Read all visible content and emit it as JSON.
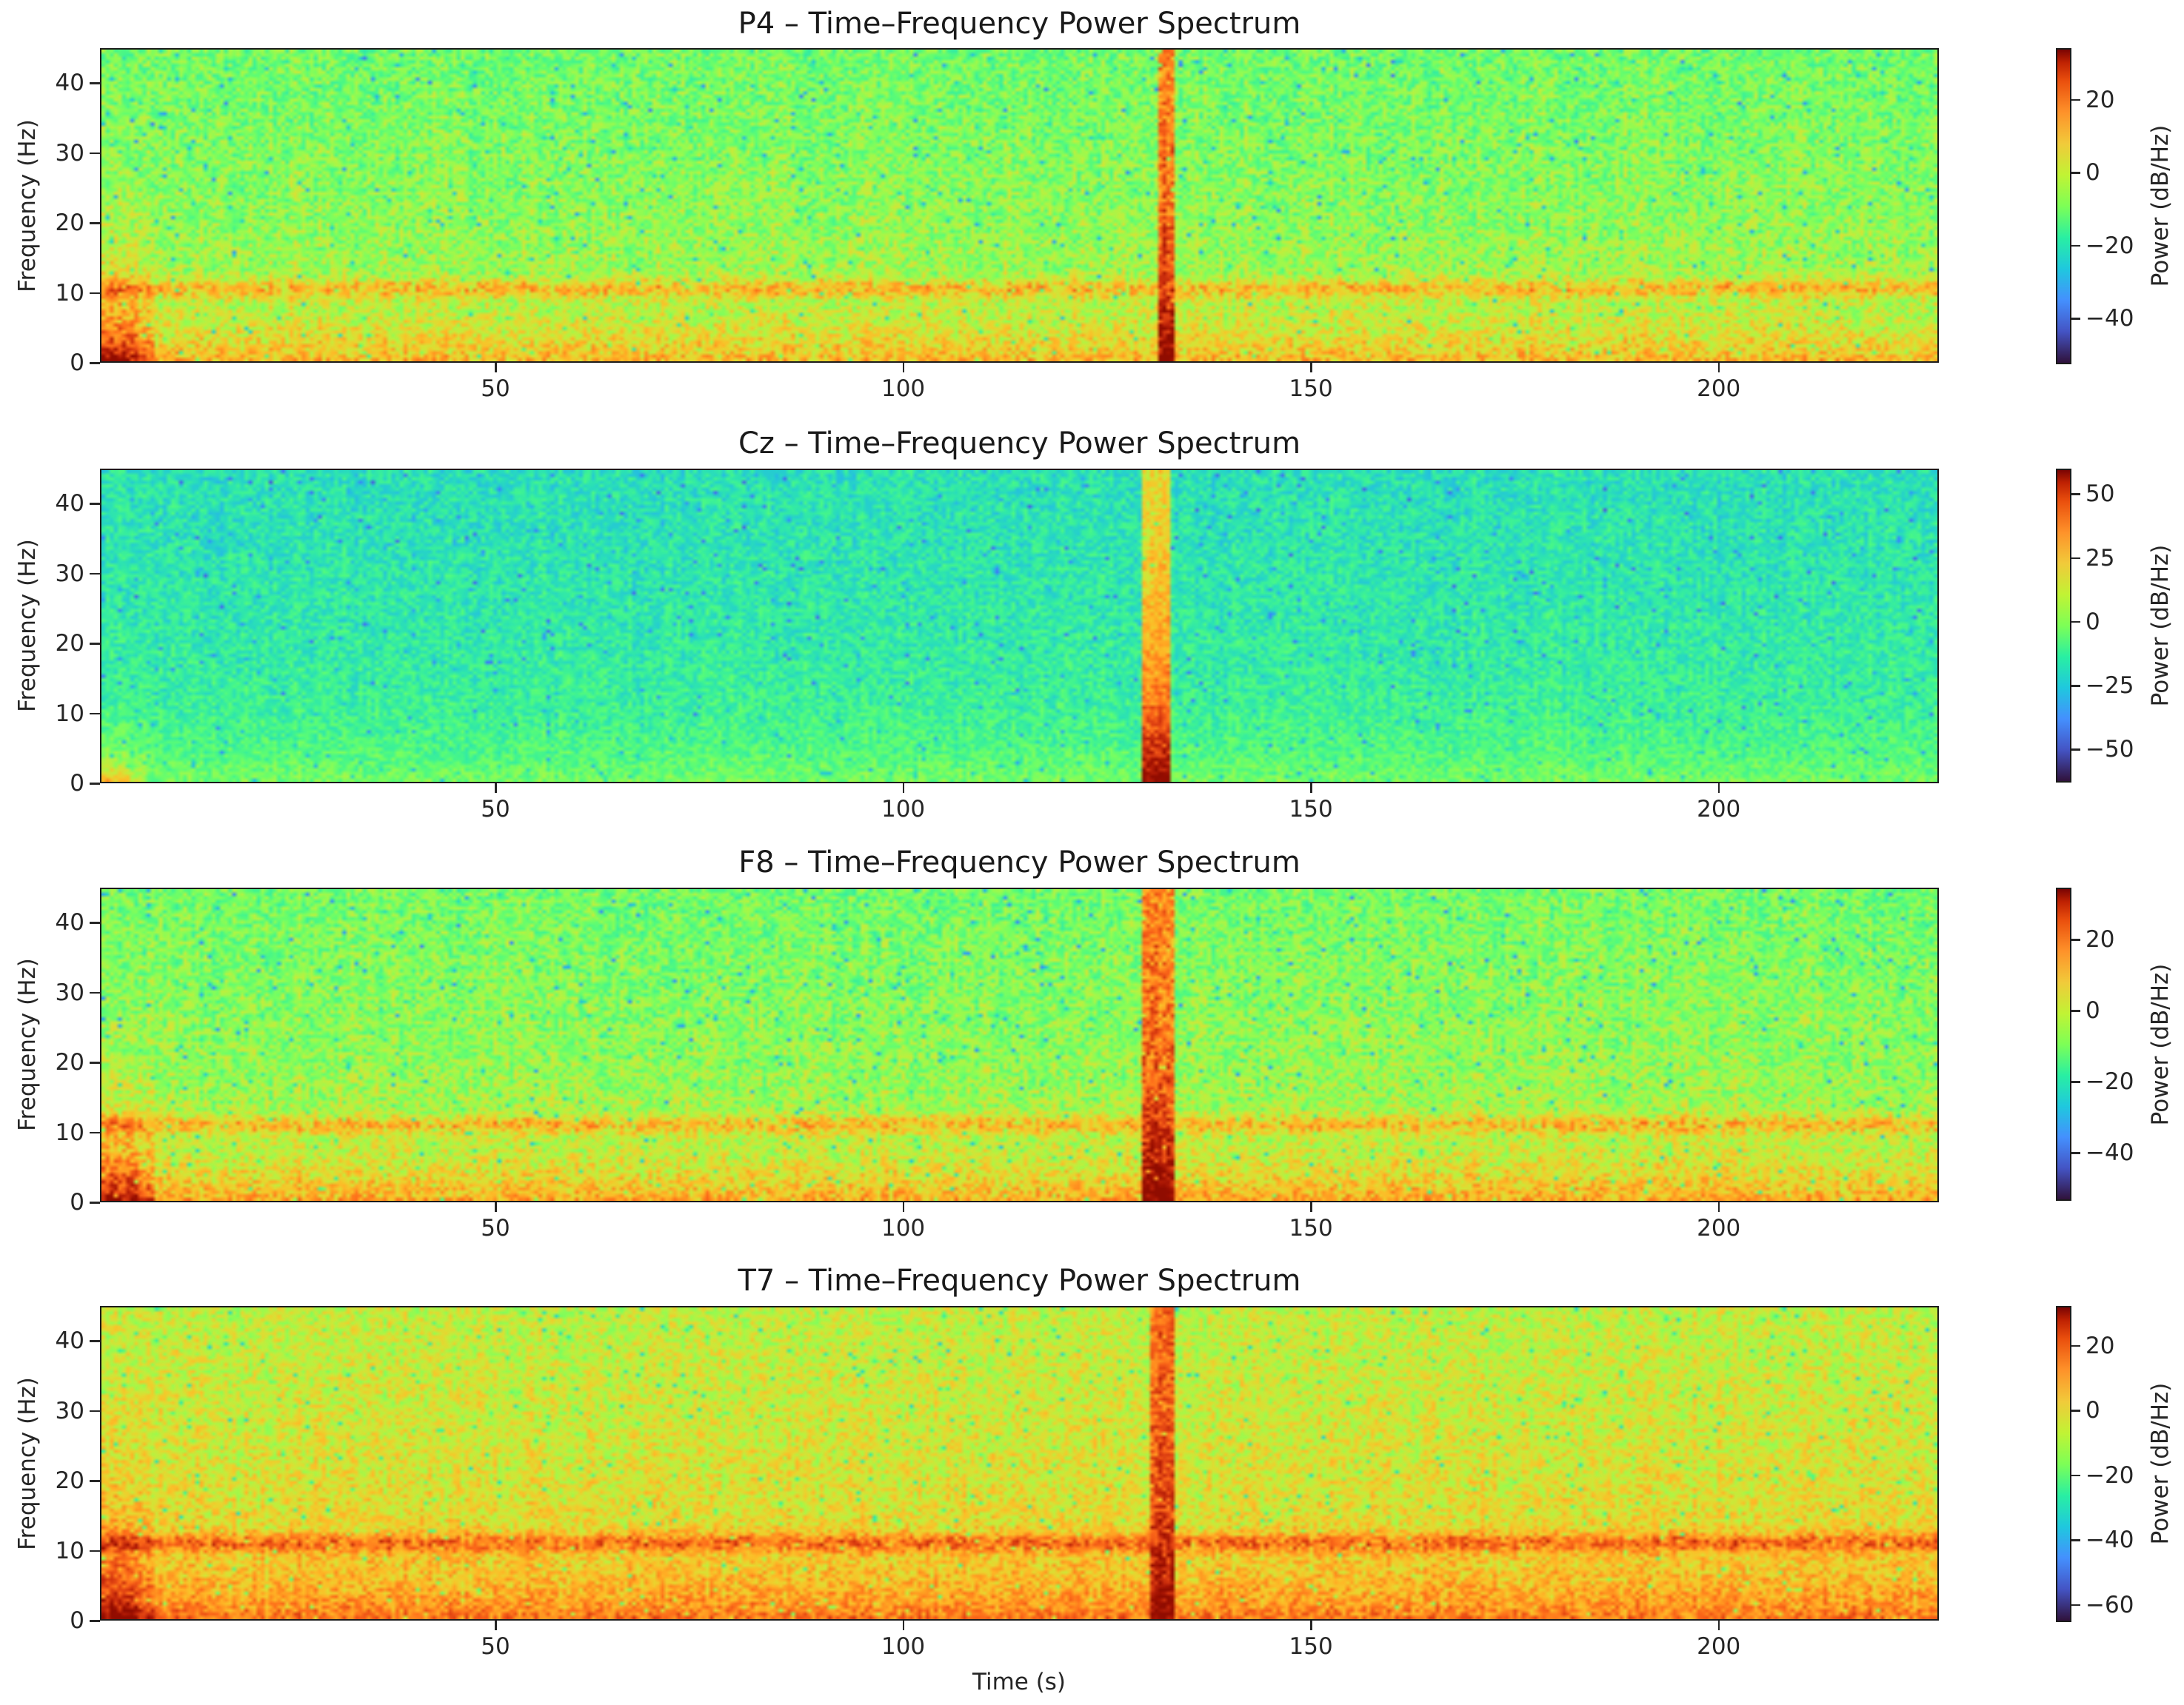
{
  "figure": {
    "xlabel": "Time (s)",
    "ylabel": "Frequency (Hz)",
    "colorbar_label": "Power (dB/Hz)",
    "colormap": "turbo",
    "x_ticks": [
      50,
      100,
      150,
      200
    ],
    "y_ticks": [
      0,
      10,
      20,
      30,
      40
    ]
  },
  "panels": [
    {
      "title": "P4 – Time–Frequency Power Spectrum",
      "channel": "P4",
      "cbar_ticks": [
        20,
        0,
        -20,
        -40
      ],
      "cbar_tick_labels": [
        "20",
        "0",
        "−20",
        "−40"
      ],
      "vmin": -52.6,
      "vmax": 34.2
    },
    {
      "title": "Cz – Time–Frequency Power Spectrum",
      "channel": "Cz",
      "cbar_ticks": [
        50,
        25,
        0,
        -25,
        -50
      ],
      "cbar_tick_labels": [
        "50",
        "25",
        "0",
        "−25",
        "−50"
      ],
      "vmin": -63,
      "vmax": 60
    },
    {
      "title": "F8 – Time–Frequency Power Spectrum",
      "channel": "F8",
      "cbar_ticks": [
        20,
        0,
        -20,
        -40
      ],
      "cbar_tick_labels": [
        "20",
        "0",
        "−20",
        "−40"
      ],
      "vmin": -53.5,
      "vmax": 34.6
    },
    {
      "title": "T7 – Time–Frequency Power Spectrum",
      "channel": "T7",
      "cbar_ticks": [
        20,
        0,
        -20,
        -40,
        -60
      ],
      "cbar_tick_labels": [
        "20",
        "0",
        "−20",
        "−40",
        "−60"
      ],
      "vmin": -65.3,
      "vmax": 32.3
    }
  ],
  "chart_data": [
    {
      "type": "heatmap",
      "title": "P4 – Time–Frequency Power Spectrum",
      "xlabel": "Time (s)",
      "ylabel": "Frequency (Hz)",
      "colorbar_label": "Power (dB/Hz)",
      "xlim": [
        1.5,
        227
      ],
      "ylim": [
        0,
        45
      ],
      "clim": [
        -52.6,
        34.2
      ],
      "colormap": "turbo",
      "x_ticks": [
        50,
        100,
        150,
        200
      ],
      "y_ticks": [
        0,
        10,
        20,
        30,
        40
      ],
      "cbar_ticks": [
        -40,
        -20,
        0,
        20
      ],
      "features": {
        "background_db": -8,
        "alpha_band_hz": 10.5,
        "alpha_boost_db": 12,
        "low_freq_boost_db": 14,
        "onset_burst": {
          "t": [
            1.5,
            6
          ],
          "f": [
            0,
            20
          ],
          "db": 30
        },
        "artifact": {
          "t": [
            131.4,
            133.3
          ],
          "f": [
            0,
            45
          ],
          "peak_db": 34
        }
      }
    },
    {
      "type": "heatmap",
      "title": "Cz – Time–Frequency Power Spectrum",
      "xlabel": "Time (s)",
      "ylabel": "Frequency (Hz)",
      "colorbar_label": "Power (dB/Hz)",
      "xlim": [
        1.5,
        227
      ],
      "ylim": [
        0,
        45
      ],
      "clim": [
        -63,
        60
      ],
      "colormap": "turbo",
      "x_ticks": [
        50,
        100,
        150,
        200
      ],
      "y_ticks": [
        0,
        10,
        20,
        30,
        40
      ],
      "cbar_ticks": [
        -50,
        -25,
        0,
        25,
        50
      ],
      "features": {
        "background_db": -18,
        "alpha_band_hz": null,
        "alpha_boost_db": 0,
        "low_freq_boost_db": 12,
        "onset_burst": {
          "t": [
            1.5,
            5
          ],
          "f": [
            0,
            5
          ],
          "db": 25
        },
        "artifact": {
          "t": [
            129.2,
            133
          ],
          "f": [
            0,
            45
          ],
          "peak_db": 58
        }
      }
    },
    {
      "type": "heatmap",
      "title": "F8 – Time–Frequency Power Spectrum",
      "xlabel": "Time (s)",
      "ylabel": "Frequency (Hz)",
      "colorbar_label": "Power (dB/Hz)",
      "xlim": [
        1.5,
        227
      ],
      "ylim": [
        0,
        45
      ],
      "clim": [
        -53.5,
        34.6
      ],
      "colormap": "turbo",
      "x_ticks": [
        50,
        100,
        150,
        200
      ],
      "y_ticks": [
        0,
        10,
        20,
        30,
        40
      ],
      "cbar_ticks": [
        -40,
        -20,
        0,
        20
      ],
      "features": {
        "background_db": -8,
        "alpha_band_hz": 11,
        "alpha_boost_db": 12,
        "low_freq_boost_db": 16,
        "onset_burst": {
          "t": [
            1.5,
            6
          ],
          "f": [
            0,
            18
          ],
          "db": 30
        },
        "artifact": {
          "t": [
            129.5,
            133.3
          ],
          "f": [
            0,
            45
          ],
          "peak_db": 34
        }
      }
    },
    {
      "type": "heatmap",
      "title": "T7 – Time–Frequency Power Spectrum",
      "xlabel": "Time (s)",
      "ylabel": "Frequency (Hz)",
      "colorbar_label": "Power (dB/Hz)",
      "xlim": [
        1.5,
        227
      ],
      "ylim": [
        0,
        45
      ],
      "clim": [
        -65.3,
        32.3
      ],
      "colormap": "turbo",
      "x_ticks": [
        50,
        100,
        150,
        200
      ],
      "y_ticks": [
        0,
        10,
        20,
        30,
        40
      ],
      "cbar_ticks": [
        -60,
        -40,
        -20,
        0,
        20
      ],
      "features": {
        "background_db": -6,
        "alpha_band_hz": 11,
        "alpha_boost_db": 16,
        "low_freq_boost_db": 16,
        "onset_burst": {
          "t": [
            1.5,
            6
          ],
          "f": [
            0,
            20
          ],
          "db": 30
        },
        "artifact": {
          "t": [
            130.5,
            133.3
          ],
          "f": [
            0,
            45
          ],
          "peak_db": 32
        }
      }
    }
  ]
}
